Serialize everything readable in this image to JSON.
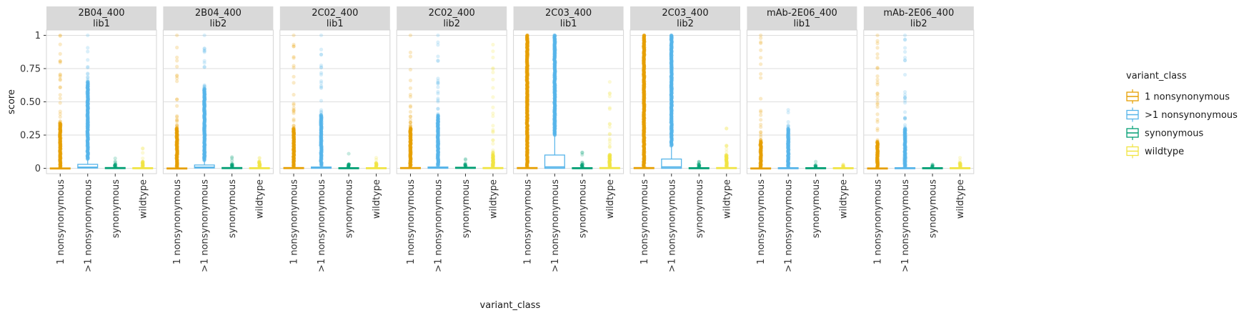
{
  "chart_data": {
    "type": "boxplot",
    "facet_by": [
      "selection",
      "library"
    ],
    "xlabel": "variant_class",
    "ylabel": "score",
    "ylim": [
      -0.04,
      1.04
    ],
    "yticks": [
      0,
      0.25,
      0.5,
      0.75,
      1
    ],
    "ytick_labels": [
      "0",
      "0.25",
      "0.50",
      "0.75",
      "1"
    ],
    "categories": [
      "1 nonsynonymous",
      ">1 nonsynonymous",
      "synonymous",
      "wildtype"
    ],
    "colors": {
      "1 nonsynonymous": "#E69F00",
      ">1 nonsynonymous": "#56B4E9",
      "synonymous": "#009E73",
      "wildtype": "#F0E442"
    },
    "legend": {
      "title": "variant_class",
      "position": "right",
      "entries": [
        "1 nonsynonymous",
        ">1 nonsynonymous",
        "synonymous",
        "wildtype"
      ]
    },
    "grid": true,
    "strip_background": "#d9d9d9",
    "panels": [
      {
        "label1": "2B04_400",
        "label2": "lib1",
        "boxes": [
          {
            "class": "1 nonsynonymous",
            "q1": 0,
            "median": 0,
            "q3": 0.003,
            "whisker_high": 0.006,
            "outlier_max": 1.0,
            "dense_to": 0.34
          },
          {
            "class": ">1 nonsynonymous",
            "q1": 0.002,
            "median": 0.008,
            "q3": 0.03,
            "whisker_high": 0.07,
            "outlier_max": 1.0,
            "dense_to": 0.65
          },
          {
            "class": "synonymous",
            "q1": 0,
            "median": 0.002,
            "q3": 0.006,
            "whisker_high": 0.012,
            "outlier_max": 0.075,
            "dense_to": 0.03
          },
          {
            "class": "wildtype",
            "q1": 0,
            "median": 0.002,
            "q3": 0.005,
            "whisker_high": 0.01,
            "outlier_max": 0.15,
            "dense_to": 0.05
          }
        ]
      },
      {
        "label1": "2B04_400",
        "label2": "lib2",
        "boxes": [
          {
            "class": "1 nonsynonymous",
            "q1": 0,
            "median": 0,
            "q3": 0.003,
            "whisker_high": 0.006,
            "outlier_max": 1.0,
            "dense_to": 0.3
          },
          {
            "class": ">1 nonsynonymous",
            "q1": 0.002,
            "median": 0.008,
            "q3": 0.025,
            "whisker_high": 0.06,
            "outlier_max": 1.0,
            "dense_to": 0.6
          },
          {
            "class": "synonymous",
            "q1": 0,
            "median": 0.002,
            "q3": 0.006,
            "whisker_high": 0.012,
            "outlier_max": 0.085,
            "dense_to": 0.03
          },
          {
            "class": "wildtype",
            "q1": 0,
            "median": 0.002,
            "q3": 0.005,
            "whisker_high": 0.01,
            "outlier_max": 0.08,
            "dense_to": 0.05
          }
        ]
      },
      {
        "label1": "2C02_400",
        "label2": "lib1",
        "boxes": [
          {
            "class": "1 nonsynonymous",
            "q1": 0,
            "median": 0.002,
            "q3": 0.006,
            "whisker_high": 0.012,
            "outlier_max": 1.0,
            "dense_to": 0.3
          },
          {
            "class": ">1 nonsynonymous",
            "q1": 0,
            "median": 0.004,
            "q3": 0.01,
            "whisker_high": 0.02,
            "outlier_max": 1.0,
            "dense_to": 0.4
          },
          {
            "class": "synonymous",
            "q1": 0,
            "median": 0.002,
            "q3": 0.005,
            "whisker_high": 0.01,
            "outlier_max": 0.11,
            "dense_to": 0.03
          },
          {
            "class": "wildtype",
            "q1": 0,
            "median": 0.002,
            "q3": 0.005,
            "whisker_high": 0.01,
            "outlier_max": 0.08,
            "dense_to": 0.04
          }
        ]
      },
      {
        "label1": "2C02_400",
        "label2": "lib2",
        "boxes": [
          {
            "class": "1 nonsynonymous",
            "q1": 0,
            "median": 0.002,
            "q3": 0.006,
            "whisker_high": 0.012,
            "outlier_max": 1.0,
            "dense_to": 0.3
          },
          {
            "class": ">1 nonsynonymous",
            "q1": 0,
            "median": 0.004,
            "q3": 0.01,
            "whisker_high": 0.02,
            "outlier_max": 1.0,
            "dense_to": 0.4
          },
          {
            "class": "synonymous",
            "q1": 0,
            "median": 0.002,
            "q3": 0.008,
            "whisker_high": 0.015,
            "outlier_max": 0.07,
            "dense_to": 0.03
          },
          {
            "class": "wildtype",
            "q1": 0,
            "median": 0.002,
            "q3": 0.006,
            "whisker_high": 0.012,
            "outlier_max": 0.93,
            "dense_to": 0.1
          }
        ]
      },
      {
        "label1": "2C03_400",
        "label2": "lib1",
        "boxes": [
          {
            "class": "1 nonsynonymous",
            "q1": 0,
            "median": 0.002,
            "q3": 0.006,
            "whisker_high": 0.012,
            "outlier_max": 1.0,
            "dense_to": 1.0
          },
          {
            "class": ">1 nonsynonymous",
            "q1": 0,
            "median": 0.01,
            "q3": 0.1,
            "whisker_high": 0.25,
            "outlier_max": 1.0,
            "dense_to": 1.0
          },
          {
            "class": "synonymous",
            "q1": 0,
            "median": 0.002,
            "q3": 0.005,
            "whisker_high": 0.01,
            "outlier_max": 0.12,
            "dense_to": 0.03
          },
          {
            "class": "wildtype",
            "q1": 0,
            "median": 0.002,
            "q3": 0.006,
            "whisker_high": 0.012,
            "outlier_max": 0.65,
            "dense_to": 0.1
          }
        ]
      },
      {
        "label1": "2C03_400",
        "label2": "lib2",
        "boxes": [
          {
            "class": "1 nonsynonymous",
            "q1": 0,
            "median": 0.002,
            "q3": 0.006,
            "whisker_high": 0.012,
            "outlier_max": 1.0,
            "dense_to": 1.0
          },
          {
            "class": ">1 nonsynonymous",
            "q1": 0,
            "median": 0.01,
            "q3": 0.07,
            "whisker_high": 0.17,
            "outlier_max": 1.0,
            "dense_to": 1.0
          },
          {
            "class": "synonymous",
            "q1": 0,
            "median": 0.002,
            "q3": 0.005,
            "whisker_high": 0.01,
            "outlier_max": 0.05,
            "dense_to": 0.03
          },
          {
            "class": "wildtype",
            "q1": 0,
            "median": 0.002,
            "q3": 0.006,
            "whisker_high": 0.012,
            "outlier_max": 0.3,
            "dense_to": 0.1
          }
        ]
      },
      {
        "label1": "mAb-2E06_400",
        "label2": "lib1",
        "boxes": [
          {
            "class": "1 nonsynonymous",
            "q1": 0,
            "median": 0,
            "q3": 0.003,
            "whisker_high": 0.006,
            "outlier_max": 1.0,
            "dense_to": 0.2
          },
          {
            "class": ">1 nonsynonymous",
            "q1": 0,
            "median": 0.002,
            "q3": 0.005,
            "whisker_high": 0.01,
            "outlier_max": 0.44,
            "dense_to": 0.3
          },
          {
            "class": "synonymous",
            "q1": 0,
            "median": 0.002,
            "q3": 0.005,
            "whisker_high": 0.01,
            "outlier_max": 0.05,
            "dense_to": 0.02
          },
          {
            "class": "wildtype",
            "q1": 0,
            "median": 0.002,
            "q3": 0.005,
            "whisker_high": 0.01,
            "outlier_max": 0.03,
            "dense_to": 0.02
          }
        ]
      },
      {
        "label1": "mAb-2E06_400",
        "label2": "lib2",
        "boxes": [
          {
            "class": "1 nonsynonymous",
            "q1": 0,
            "median": 0,
            "q3": 0.003,
            "whisker_high": 0.006,
            "outlier_max": 1.0,
            "dense_to": 0.2
          },
          {
            "class": ">1 nonsynonymous",
            "q1": 0,
            "median": 0.002,
            "q3": 0.005,
            "whisker_high": 0.01,
            "outlier_max": 1.0,
            "dense_to": 0.3
          },
          {
            "class": "synonymous",
            "q1": 0,
            "median": 0.002,
            "q3": 0.005,
            "whisker_high": 0.01,
            "outlier_max": 0.03,
            "dense_to": 0.02
          },
          {
            "class": "wildtype",
            "q1": 0,
            "median": 0.002,
            "q3": 0.005,
            "whisker_high": 0.01,
            "outlier_max": 0.08,
            "dense_to": 0.04
          }
        ]
      }
    ]
  }
}
